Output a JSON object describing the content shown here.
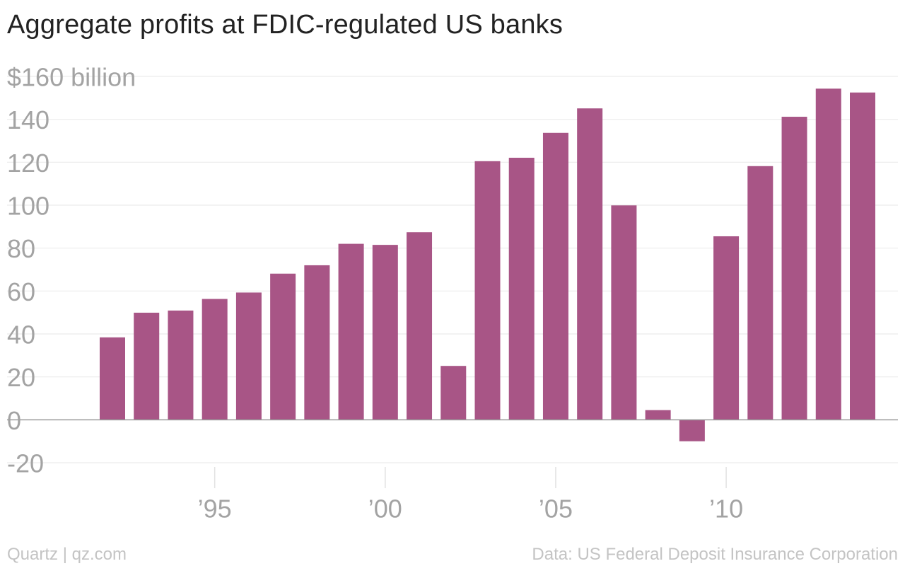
{
  "chart_data": {
    "type": "bar",
    "title": "Aggregate profits at FDIC-regulated US banks",
    "x": [
      1992,
      1993,
      1994,
      1995,
      1996,
      1997,
      1998,
      1999,
      2000,
      2001,
      2002,
      2003,
      2004,
      2005,
      2006,
      2007,
      2008,
      2009,
      2010,
      2011,
      2012,
      2013,
      2014
    ],
    "values": [
      38.4,
      49.9,
      50.9,
      56.3,
      59.3,
      68.1,
      72.0,
      82.0,
      81.5,
      87.4,
      25.1,
      120.5,
      122.1,
      133.7,
      145.1,
      99.9,
      4.5,
      -10.0,
      85.5,
      118.2,
      141.2,
      154.3,
      152.5
    ],
    "xlabel": "",
    "ylabel": "",
    "ylim": [
      -20,
      160
    ],
    "yticks": [
      -20,
      0,
      20,
      40,
      60,
      80,
      100,
      120,
      140,
      160
    ],
    "ytick_labels": [
      "-20",
      "0",
      "20",
      "40",
      "60",
      "80",
      "100",
      "120",
      "140",
      "$160 billion"
    ],
    "xticks": [
      1995,
      2000,
      2005,
      2010
    ],
    "xtick_labels": [
      "’95",
      "’00",
      "’05",
      "’10"
    ],
    "grid": true,
    "bar_color": "#a85586"
  },
  "footer": {
    "source_left": "Quartz | qz.com",
    "source_right": "Data: US Federal Deposit Insurance Corporation"
  }
}
